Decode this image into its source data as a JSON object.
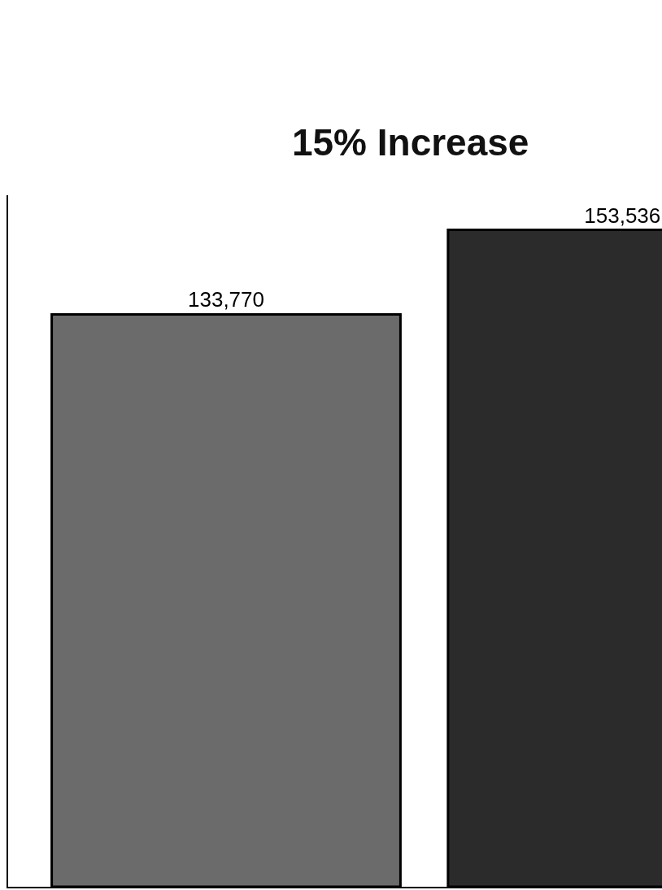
{
  "chart_data": {
    "type": "bar",
    "title": "15% Increase",
    "categories": [
      null,
      null
    ],
    "values": [
      133770,
      153536
    ],
    "colors": [
      "#6b6b6b",
      "#2b2b2b"
    ],
    "value_labels": [
      "133,770",
      "153,536"
    ]
  }
}
